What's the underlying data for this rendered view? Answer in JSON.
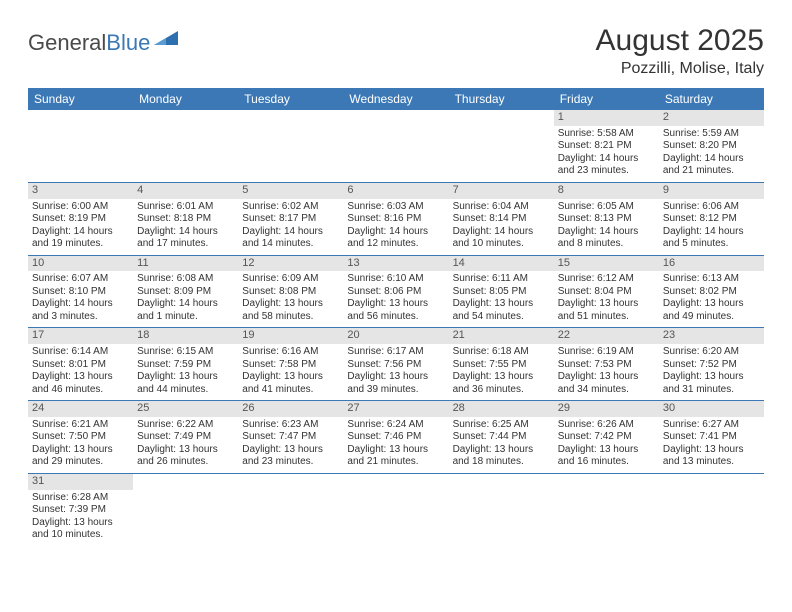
{
  "logo": {
    "textA": "General",
    "textB": "Blue",
    "shape_color": "#2e6fb0"
  },
  "title": "August 2025",
  "location": "Pozzilli, Molise, Italy",
  "header_bg": "#3b78b5",
  "daynum_bg": "#e5e5e5",
  "row_border": "#3b78b5",
  "weekdays": [
    "Sunday",
    "Monday",
    "Tuesday",
    "Wednesday",
    "Thursday",
    "Friday",
    "Saturday"
  ],
  "weeks": [
    [
      {
        "num": "",
        "sunrise": "",
        "sunset": "",
        "daylight": ""
      },
      {
        "num": "",
        "sunrise": "",
        "sunset": "",
        "daylight": ""
      },
      {
        "num": "",
        "sunrise": "",
        "sunset": "",
        "daylight": ""
      },
      {
        "num": "",
        "sunrise": "",
        "sunset": "",
        "daylight": ""
      },
      {
        "num": "",
        "sunrise": "",
        "sunset": "",
        "daylight": ""
      },
      {
        "num": "1",
        "sunrise": "Sunrise: 5:58 AM",
        "sunset": "Sunset: 8:21 PM",
        "daylight": "Daylight: 14 hours and 23 minutes."
      },
      {
        "num": "2",
        "sunrise": "Sunrise: 5:59 AM",
        "sunset": "Sunset: 8:20 PM",
        "daylight": "Daylight: 14 hours and 21 minutes."
      }
    ],
    [
      {
        "num": "3",
        "sunrise": "Sunrise: 6:00 AM",
        "sunset": "Sunset: 8:19 PM",
        "daylight": "Daylight: 14 hours and 19 minutes."
      },
      {
        "num": "4",
        "sunrise": "Sunrise: 6:01 AM",
        "sunset": "Sunset: 8:18 PM",
        "daylight": "Daylight: 14 hours and 17 minutes."
      },
      {
        "num": "5",
        "sunrise": "Sunrise: 6:02 AM",
        "sunset": "Sunset: 8:17 PM",
        "daylight": "Daylight: 14 hours and 14 minutes."
      },
      {
        "num": "6",
        "sunrise": "Sunrise: 6:03 AM",
        "sunset": "Sunset: 8:16 PM",
        "daylight": "Daylight: 14 hours and 12 minutes."
      },
      {
        "num": "7",
        "sunrise": "Sunrise: 6:04 AM",
        "sunset": "Sunset: 8:14 PM",
        "daylight": "Daylight: 14 hours and 10 minutes."
      },
      {
        "num": "8",
        "sunrise": "Sunrise: 6:05 AM",
        "sunset": "Sunset: 8:13 PM",
        "daylight": "Daylight: 14 hours and 8 minutes."
      },
      {
        "num": "9",
        "sunrise": "Sunrise: 6:06 AM",
        "sunset": "Sunset: 8:12 PM",
        "daylight": "Daylight: 14 hours and 5 minutes."
      }
    ],
    [
      {
        "num": "10",
        "sunrise": "Sunrise: 6:07 AM",
        "sunset": "Sunset: 8:10 PM",
        "daylight": "Daylight: 14 hours and 3 minutes."
      },
      {
        "num": "11",
        "sunrise": "Sunrise: 6:08 AM",
        "sunset": "Sunset: 8:09 PM",
        "daylight": "Daylight: 14 hours and 1 minute."
      },
      {
        "num": "12",
        "sunrise": "Sunrise: 6:09 AM",
        "sunset": "Sunset: 8:08 PM",
        "daylight": "Daylight: 13 hours and 58 minutes."
      },
      {
        "num": "13",
        "sunrise": "Sunrise: 6:10 AM",
        "sunset": "Sunset: 8:06 PM",
        "daylight": "Daylight: 13 hours and 56 minutes."
      },
      {
        "num": "14",
        "sunrise": "Sunrise: 6:11 AM",
        "sunset": "Sunset: 8:05 PM",
        "daylight": "Daylight: 13 hours and 54 minutes."
      },
      {
        "num": "15",
        "sunrise": "Sunrise: 6:12 AM",
        "sunset": "Sunset: 8:04 PM",
        "daylight": "Daylight: 13 hours and 51 minutes."
      },
      {
        "num": "16",
        "sunrise": "Sunrise: 6:13 AM",
        "sunset": "Sunset: 8:02 PM",
        "daylight": "Daylight: 13 hours and 49 minutes."
      }
    ],
    [
      {
        "num": "17",
        "sunrise": "Sunrise: 6:14 AM",
        "sunset": "Sunset: 8:01 PM",
        "daylight": "Daylight: 13 hours and 46 minutes."
      },
      {
        "num": "18",
        "sunrise": "Sunrise: 6:15 AM",
        "sunset": "Sunset: 7:59 PM",
        "daylight": "Daylight: 13 hours and 44 minutes."
      },
      {
        "num": "19",
        "sunrise": "Sunrise: 6:16 AM",
        "sunset": "Sunset: 7:58 PM",
        "daylight": "Daylight: 13 hours and 41 minutes."
      },
      {
        "num": "20",
        "sunrise": "Sunrise: 6:17 AM",
        "sunset": "Sunset: 7:56 PM",
        "daylight": "Daylight: 13 hours and 39 minutes."
      },
      {
        "num": "21",
        "sunrise": "Sunrise: 6:18 AM",
        "sunset": "Sunset: 7:55 PM",
        "daylight": "Daylight: 13 hours and 36 minutes."
      },
      {
        "num": "22",
        "sunrise": "Sunrise: 6:19 AM",
        "sunset": "Sunset: 7:53 PM",
        "daylight": "Daylight: 13 hours and 34 minutes."
      },
      {
        "num": "23",
        "sunrise": "Sunrise: 6:20 AM",
        "sunset": "Sunset: 7:52 PM",
        "daylight": "Daylight: 13 hours and 31 minutes."
      }
    ],
    [
      {
        "num": "24",
        "sunrise": "Sunrise: 6:21 AM",
        "sunset": "Sunset: 7:50 PM",
        "daylight": "Daylight: 13 hours and 29 minutes."
      },
      {
        "num": "25",
        "sunrise": "Sunrise: 6:22 AM",
        "sunset": "Sunset: 7:49 PM",
        "daylight": "Daylight: 13 hours and 26 minutes."
      },
      {
        "num": "26",
        "sunrise": "Sunrise: 6:23 AM",
        "sunset": "Sunset: 7:47 PM",
        "daylight": "Daylight: 13 hours and 23 minutes."
      },
      {
        "num": "27",
        "sunrise": "Sunrise: 6:24 AM",
        "sunset": "Sunset: 7:46 PM",
        "daylight": "Daylight: 13 hours and 21 minutes."
      },
      {
        "num": "28",
        "sunrise": "Sunrise: 6:25 AM",
        "sunset": "Sunset: 7:44 PM",
        "daylight": "Daylight: 13 hours and 18 minutes."
      },
      {
        "num": "29",
        "sunrise": "Sunrise: 6:26 AM",
        "sunset": "Sunset: 7:42 PM",
        "daylight": "Daylight: 13 hours and 16 minutes."
      },
      {
        "num": "30",
        "sunrise": "Sunrise: 6:27 AM",
        "sunset": "Sunset: 7:41 PM",
        "daylight": "Daylight: 13 hours and 13 minutes."
      }
    ],
    [
      {
        "num": "31",
        "sunrise": "Sunrise: 6:28 AM",
        "sunset": "Sunset: 7:39 PM",
        "daylight": "Daylight: 13 hours and 10 minutes."
      },
      {
        "num": "",
        "sunrise": "",
        "sunset": "",
        "daylight": ""
      },
      {
        "num": "",
        "sunrise": "",
        "sunset": "",
        "daylight": ""
      },
      {
        "num": "",
        "sunrise": "",
        "sunset": "",
        "daylight": ""
      },
      {
        "num": "",
        "sunrise": "",
        "sunset": "",
        "daylight": ""
      },
      {
        "num": "",
        "sunrise": "",
        "sunset": "",
        "daylight": ""
      },
      {
        "num": "",
        "sunrise": "",
        "sunset": "",
        "daylight": ""
      }
    ]
  ]
}
